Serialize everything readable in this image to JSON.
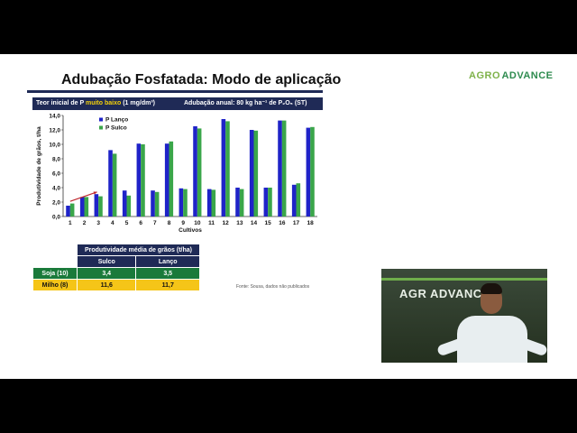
{
  "slide": {
    "title": "Adubação Fosfatada: Modo de aplicação",
    "logo": {
      "part1": "AGR",
      "part2": "ADVANCE"
    },
    "header_left_prefix": "Teor inicial de P ",
    "header_left_highlight": "muito baixo",
    "header_left_suffix": " (1 mg/dm³)",
    "header_right": "Adubação anual: 80 kg ha⁻¹ de P₂O₅ (ST)",
    "source": "Fonte: Sousa, dados não publicados",
    "colors": {
      "navy": "#1f2a56",
      "blue": "#1f23c8",
      "green": "#3aa64a",
      "soja": "#1a7a3a",
      "milho": "#f5c518",
      "arrow": "#c0282e"
    }
  },
  "table": {
    "title": "Produtividade média de grãos (t/ha)",
    "col1": "Sulco",
    "col2": "Lanço",
    "rows": [
      {
        "label": "Soja (10)",
        "sulco": "3,4",
        "lanco": "3,5"
      },
      {
        "label": "Milho (8)",
        "sulco": "11,6",
        "lanco": "11,7"
      }
    ]
  },
  "webcam": {
    "sign": "AGR ADVANC"
  },
  "chart_data": {
    "type": "bar",
    "title": "",
    "xlabel": "Cultivos",
    "ylabel": "Produtividade de grãos, t/ha",
    "ylim": [
      0,
      14
    ],
    "yticks": [
      "0,0",
      "2,0",
      "4,0",
      "6,0",
      "8,0",
      "10,0",
      "12,0",
      "14,0"
    ],
    "categories": [
      "1",
      "2",
      "3",
      "4",
      "5",
      "6",
      "7",
      "8",
      "9",
      "10",
      "11",
      "12",
      "13",
      "14",
      "15",
      "16",
      "17",
      "18"
    ],
    "legend_position": "top-left",
    "series": [
      {
        "name": "P Lanço",
        "color": "#1f23c8",
        "values": [
          1.5,
          2.7,
          3.1,
          9.2,
          3.6,
          10.1,
          3.6,
          10.1,
          3.9,
          12.5,
          3.8,
          13.5,
          4.0,
          12.0,
          4.0,
          13.3,
          4.4,
          12.3
        ]
      },
      {
        "name": "P Sulco",
        "color": "#3aa64a",
        "values": [
          1.8,
          2.7,
          2.8,
          8.7,
          2.9,
          10.0,
          3.4,
          10.4,
          3.8,
          12.2,
          3.7,
          13.2,
          3.8,
          11.9,
          4.0,
          13.3,
          4.6,
          12.4
        ]
      }
    ]
  }
}
